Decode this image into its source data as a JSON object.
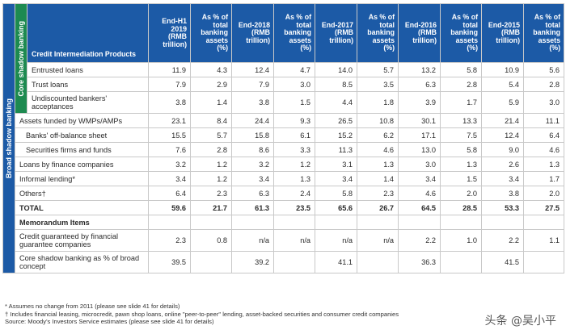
{
  "side": {
    "broad": "Broad shadow banking",
    "core": "Core shadow banking"
  },
  "header": {
    "products": "Credit Intermediation Products",
    "columns": [
      "End-H1 2019 (RMB trillion)",
      "As % of total banking assets (%)",
      "End-2018 (RMB trillion)",
      "As % of total banking assets (%)",
      "End-2017 (RMB trillion)",
      "As % of total banking assets (%)",
      "End-2016 (RMB trillion)",
      "As % of total banking assets (%)",
      "End-2015 (RMB trillion)",
      "As % of total banking assets (%)"
    ]
  },
  "rows": [
    {
      "label": "Entrusted loans",
      "values": [
        "11.9",
        "4.3",
        "12.4",
        "4.7",
        "14.0",
        "5.7",
        "13.2",
        "5.8",
        "10.9",
        "5.6"
      ]
    },
    {
      "label": "Trust loans",
      "values": [
        "7.9",
        "2.9",
        "7.9",
        "3.0",
        "8.5",
        "3.5",
        "6.3",
        "2.8",
        "5.4",
        "2.8"
      ]
    },
    {
      "label": "Undiscounted bankers' acceptances",
      "values": [
        "3.8",
        "1.4",
        "3.8",
        "1.5",
        "4.4",
        "1.8",
        "3.9",
        "1.7",
        "5.9",
        "3.0"
      ]
    },
    {
      "label": "Assets funded by WMPs/AMPs",
      "values": [
        "23.1",
        "8.4",
        "24.4",
        "9.3",
        "26.5",
        "10.8",
        "30.1",
        "13.3",
        "21.4",
        "11.1"
      ]
    },
    {
      "label": "Banks' off-balance sheet",
      "values": [
        "15.5",
        "5.7",
        "15.8",
        "6.1",
        "15.2",
        "6.2",
        "17.1",
        "7.5",
        "12.4",
        "6.4"
      ]
    },
    {
      "label": "Securities firms and funds",
      "values": [
        "7.6",
        "2.8",
        "8.6",
        "3.3",
        "11.3",
        "4.6",
        "13.0",
        "5.8",
        "9.0",
        "4.6"
      ]
    },
    {
      "label": "Loans by finance companies",
      "values": [
        "3.2",
        "1.2",
        "3.2",
        "1.2",
        "3.1",
        "1.3",
        "3.0",
        "1.3",
        "2.6",
        "1.3"
      ]
    },
    {
      "label": "Informal lending*",
      "values": [
        "3.4",
        "1.2",
        "3.4",
        "1.3",
        "3.4",
        "1.4",
        "3.4",
        "1.5",
        "3.4",
        "1.7"
      ]
    },
    {
      "label": "Others†",
      "values": [
        "6.4",
        "2.3",
        "6.3",
        "2.4",
        "5.8",
        "2.3",
        "4.6",
        "2.0",
        "3.8",
        "2.0"
      ]
    }
  ],
  "total": {
    "label": "TOTAL",
    "values": [
      "59.6",
      "21.7",
      "61.3",
      "23.5",
      "65.6",
      "26.7",
      "64.5",
      "28.5",
      "53.3",
      "27.5"
    ]
  },
  "memo": {
    "title": "Memorandum Items",
    "credit_guaranteed": {
      "label": "Credit guaranteed by financial guarantee companies",
      "values": [
        "2.3",
        "0.8",
        "n/a",
        "n/a",
        "n/a",
        "n/a",
        "2.2",
        "1.0",
        "2.2",
        "1.1"
      ]
    },
    "core_pct": {
      "label": "Core shadow banking as % of broad concept",
      "values": [
        "39.5",
        "",
        "39.2",
        "",
        "41.1",
        "",
        "36.3",
        "",
        "41.5",
        ""
      ]
    }
  },
  "notes": [
    "* Assumes no change from 2011 (please see slide 41 for details)",
    "† Includes financial leasing, microcredit, pawn shop loans, online \"peer-to-peer\" lending, asset-backed securities and consumer credit companies",
    "Source: Moody's Investors Service estimates (please see slide 41 for details)"
  ],
  "watermark": "头条 @吴小平"
}
